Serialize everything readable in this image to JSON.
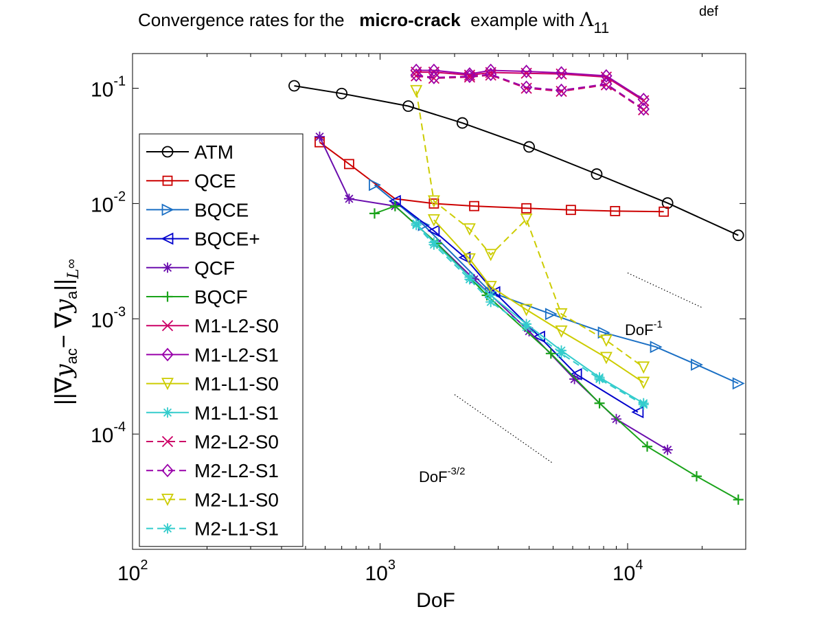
{
  "chart_data": {
    "type": "line",
    "title": {
      "prefix": "Convergence rates for the",
      "bold": "micro-crack",
      "suffix": "example with",
      "symbol": "Λ",
      "subscript": "11",
      "superscript": "def"
    },
    "xlabel": "DoF",
    "ylabel": {
      "bars_open": "||",
      "grad1": "∇",
      "y1": "y",
      "sub1": "ac",
      "minus": "−",
      "grad2": "∇",
      "y2": "y",
      "sub2": "a",
      "bars_close": "||",
      "subscript_L": "L",
      "subscript_inf": "∞"
    },
    "xscale": "log",
    "yscale": "log",
    "xlim": [
      100,
      30000
    ],
    "ylim": [
      1e-05,
      0.2
    ],
    "grid": false,
    "legend_position": "left",
    "x_ticks": [
      {
        "value": 100,
        "base": "10",
        "exp": "2"
      },
      {
        "value": 1000,
        "base": "10",
        "exp": "3"
      },
      {
        "value": 10000,
        "base": "10",
        "exp": "4"
      }
    ],
    "y_ticks": [
      {
        "value": 0.1,
        "base": "10",
        "exp": "-1"
      },
      {
        "value": 0.01,
        "base": "10",
        "exp": "-2"
      },
      {
        "value": 0.001,
        "base": "10",
        "exp": "-3"
      },
      {
        "value": 0.0001,
        "base": "10",
        "exp": "-4"
      }
    ],
    "series": [
      {
        "name": "ATM",
        "color": "#000000",
        "dash": "solid",
        "marker": "circle",
        "x": [
          450,
          700,
          1300,
          2150,
          4000,
          7500,
          14500,
          28000
        ],
        "y": [
          0.105,
          0.09,
          0.07,
          0.05,
          0.031,
          0.018,
          0.0101,
          0.0053
        ]
      },
      {
        "name": "QCE",
        "color": "#cc0000",
        "dash": "solid",
        "marker": "square",
        "x": [
          570,
          750,
          1150,
          1650,
          2400,
          3900,
          5900,
          8900,
          14000
        ],
        "y": [
          0.034,
          0.022,
          0.011,
          0.01,
          0.0095,
          0.0091,
          0.0088,
          0.0086,
          0.0085
        ],
        "marker_x": [
          570,
          750,
          1650,
          2400,
          3900,
          5900,
          8900,
          14000
        ],
        "marker_y": [
          0.034,
          0.022,
          0.01,
          0.0095,
          0.0091,
          0.0088,
          0.0086,
          0.0085
        ]
      },
      {
        "name": "BQCE",
        "color": "#1a6fc4",
        "dash": "solid",
        "marker": "triangle-right",
        "x": [
          950,
          1500,
          2800,
          4900,
          8000,
          13000,
          19000,
          28000
        ],
        "y": [
          0.0145,
          0.0065,
          0.0017,
          0.0011,
          0.00076,
          0.00057,
          0.0004,
          0.000275
        ]
      },
      {
        "name": "BQCE+",
        "color": "#0000cc",
        "dash": "solid",
        "marker": "triangle-left",
        "x": [
          1150,
          1650,
          2200,
          2900,
          4400,
          6200,
          11000
        ],
        "y": [
          0.0105,
          0.0058,
          0.0034,
          0.0017,
          0.0007,
          0.00033,
          0.000155
        ]
      },
      {
        "name": "QCF",
        "color": "#6a0dad",
        "dash": "solid",
        "marker": "star",
        "x": [
          570,
          750,
          1150,
          1700,
          2400,
          4000,
          6100,
          9000,
          14500
        ],
        "y": [
          0.038,
          0.011,
          0.0095,
          0.0045,
          0.0022,
          0.00078,
          0.0003,
          0.000135,
          7.3e-05
        ]
      },
      {
        "name": "BQCF",
        "color": "#1aa31a",
        "dash": "solid",
        "marker": "plus",
        "x": [
          950,
          1150,
          1700,
          2700,
          4900,
          7700,
          12000,
          19000,
          28000
        ],
        "y": [
          0.0082,
          0.0095,
          0.0045,
          0.0016,
          0.0005,
          0.000185,
          7.8e-05,
          4.3e-05,
          2.7e-05
        ]
      },
      {
        "name": "M1-L2-S0",
        "color": "#cc0066",
        "dash": "solid",
        "marker": "x",
        "x": [
          1400,
          1650,
          2300,
          2800,
          3900,
          5400,
          8200,
          11600
        ],
        "y": [
          0.138,
          0.138,
          0.13,
          0.137,
          0.135,
          0.133,
          0.125,
          0.078
        ]
      },
      {
        "name": "M1-L2-S1",
        "color": "#9900aa",
        "dash": "solid",
        "marker": "diamond",
        "x": [
          1400,
          1650,
          2300,
          2800,
          3900,
          5400,
          8200,
          11600
        ],
        "y": [
          0.143,
          0.143,
          0.133,
          0.143,
          0.14,
          0.136,
          0.128,
          0.08
        ]
      },
      {
        "name": "M1-L1-S0",
        "color": "#cccc00",
        "dash": "solid",
        "marker": "triangle-down",
        "x": [
          1650,
          2300,
          2800,
          3900,
          5400,
          8200,
          11600
        ],
        "y": [
          0.0072,
          0.0033,
          0.0019,
          0.0012,
          0.00078,
          0.00046,
          0.00028
        ]
      },
      {
        "name": "M1-L1-S1",
        "color": "#33cccc",
        "dash": "solid",
        "marker": "star",
        "x": [
          1400,
          1650,
          2300,
          2800,
          3900,
          5400,
          7700,
          11600
        ],
        "y": [
          0.0067,
          0.0046,
          0.0023,
          0.0016,
          0.0009,
          0.00053,
          0.00031,
          0.000185
        ]
      },
      {
        "name": "M2-L2-S0",
        "color": "#cc0066",
        "dash": "dashed",
        "marker": "x",
        "x": [
          1400,
          1650,
          2300,
          2800,
          3900,
          5400,
          8200,
          11600
        ],
        "y": [
          0.128,
          0.122,
          0.125,
          0.13,
          0.1,
          0.094,
          0.107,
          0.065
        ]
      },
      {
        "name": "M2-L2-S1",
        "color": "#9900aa",
        "dash": "dashed",
        "marker": "diamond",
        "x": [
          1400,
          1650,
          2300,
          2800,
          3900,
          5400,
          8200,
          11600
        ],
        "y": [
          0.13,
          0.124,
          0.127,
          0.132,
          0.102,
          0.096,
          0.109,
          0.066
        ]
      },
      {
        "name": "M2-L1-S0",
        "color": "#cccc00",
        "dash": "dashed",
        "marker": "triangle-down",
        "x": [
          1400,
          1650,
          2300,
          2800,
          3900,
          5400,
          8200,
          11600
        ],
        "y": [
          0.095,
          0.0105,
          0.006,
          0.0036,
          0.0073,
          0.0011,
          0.00065,
          0.00038
        ]
      },
      {
        "name": "M2-L1-S1",
        "color": "#33cccc",
        "dash": "dashed",
        "marker": "star",
        "x": [
          1400,
          1650,
          2300,
          2800,
          3900,
          5400,
          7700,
          11600
        ],
        "y": [
          0.0065,
          0.0044,
          0.0022,
          0.0014,
          0.00085,
          0.0005,
          0.0003,
          0.00018
        ]
      }
    ],
    "reference_lines": [
      {
        "label_base": "DoF",
        "label_exp": "-1",
        "x": [
          10000,
          20000
        ],
        "y": [
          0.0025,
          0.00125
        ]
      },
      {
        "label_base": "DoF",
        "label_exp": "-3/2",
        "x": [
          2000,
          5000
        ],
        "y": [
          0.00022,
          5.56e-05
        ]
      }
    ]
  }
}
